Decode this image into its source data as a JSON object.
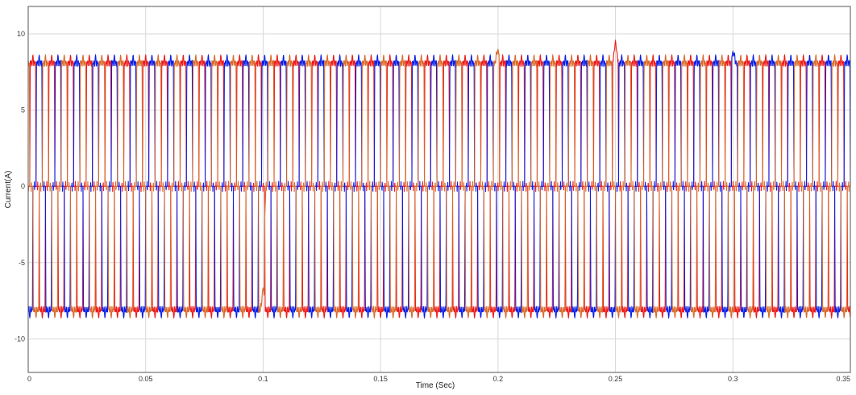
{
  "chart_data": {
    "type": "line",
    "title": "",
    "xlabel": "Time (Sec)",
    "ylabel": "Current(A)",
    "xlim": [
      0,
      0.35
    ],
    "ylim": [
      -12.2,
      11.8
    ],
    "x_ticks": [
      0,
      0.05,
      0.1,
      0.15,
      0.2,
      0.25,
      0.3,
      0.35
    ],
    "x_tick_labels": [
      "0",
      "0.05",
      "0.1",
      "0.15",
      "0.2",
      "0.25",
      "0.3",
      "0.35"
    ],
    "y_ticks": [
      10,
      5,
      0,
      -5,
      -10
    ],
    "y_tick_labels": [
      "10",
      "5",
      "0",
      "-5",
      "-10"
    ],
    "grid": true,
    "legend": "none",
    "waveform": {
      "shape": "six-pulse rectifier phase current (quasi-square with ripple)",
      "amplitude": 8.4,
      "ripple_peak": 8.5,
      "ripple_dip": 7.0,
      "frequency_hz": 125,
      "cycles_shown": 43.75
    },
    "series": [
      {
        "name": "",
        "color": "#ee1a1a",
        "phase_deg": 0
      },
      {
        "name": "",
        "color": "#0a1ee6",
        "phase_deg": -120
      },
      {
        "name": "",
        "color": "#d9692a",
        "phase_deg": 120
      }
    ],
    "annotations": [
      {
        "x": 0.1,
        "note": "disturbance",
        "peak": -6.2
      },
      {
        "x": 0.2,
        "note": "disturbance",
        "peak": 9.2
      },
      {
        "x": 0.2,
        "note": "disturbance",
        "peak": -9.3
      },
      {
        "x": 0.25,
        "note": "disturbance",
        "peak": 9.8
      },
      {
        "x": 0.25,
        "note": "disturbance",
        "peak": -9.8
      },
      {
        "x": 0.3,
        "note": "disturbance",
        "peak": 9.0
      },
      {
        "x": 0.3,
        "note": "disturbance",
        "peak": -9.0
      }
    ]
  }
}
